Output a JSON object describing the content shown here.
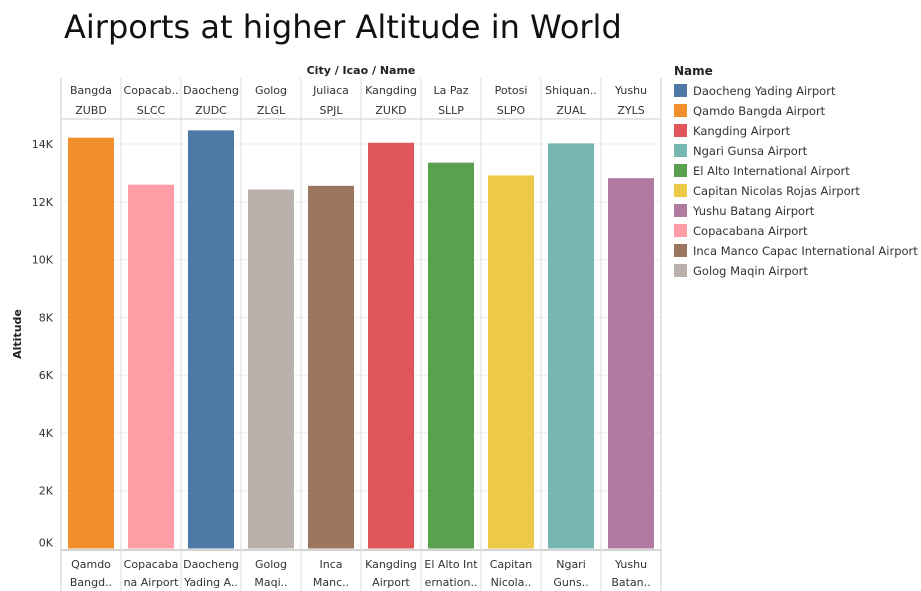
{
  "chart_data": {
    "type": "bar",
    "title": "Airports at higher Altitude in World",
    "header_label": "City / Icao / Name",
    "ylabel": "Altitude",
    "ylim": [
      0,
      15000
    ],
    "yticks": [
      0,
      2000,
      4000,
      6000,
      8000,
      10000,
      12000,
      14000
    ],
    "ytick_labels": [
      "0K",
      "2K",
      "4K",
      "6K",
      "8K",
      "10K",
      "12K",
      "14K"
    ],
    "grid": true,
    "legend_title": "Name",
    "legend_position": "right",
    "categories": [
      {
        "city": "Bangda",
        "icao": "ZUBD",
        "name": "Qamdo Bangda Airport",
        "name_lines": [
          "Qamdo",
          "Bangd.."
        ],
        "value": 14219
      },
      {
        "city": "Copacab..",
        "icao": "SLCC",
        "name": "Copacabana Airport",
        "name_lines": [
          "Copacaba",
          "na Airport"
        ],
        "value": 12591
      },
      {
        "city": "Daocheng",
        "icao": "ZUDC",
        "name": "Daocheng Yading Airport",
        "name_lines": [
          "Daocheng",
          "Yading A.."
        ],
        "value": 14472
      },
      {
        "city": "Golog",
        "icao": "ZLGL",
        "name": "Golog Maqin Airport",
        "name_lines": [
          "Golog",
          "Maqi.."
        ],
        "value": 12426
      },
      {
        "city": "Juliaca",
        "icao": "SPJL",
        "name": "Inca Manco Capac International Airport",
        "name_lines": [
          "Inca",
          "Manc.."
        ],
        "value": 12552
      },
      {
        "city": "Kangding",
        "icao": "ZUKD",
        "name": "Kangding Airport",
        "name_lines": [
          "Kangding",
          "Airport"
        ],
        "value": 14042
      },
      {
        "city": "La Paz",
        "icao": "SLLP",
        "name": "El Alto International Airport",
        "name_lines": [
          "El Alto Int",
          "ernation.."
        ],
        "value": 13355
      },
      {
        "city": "Potosi",
        "icao": "SLPO",
        "name": "Capitan Nicolas Rojas Airport",
        "name_lines": [
          "Capitan",
          "Nicola.."
        ],
        "value": 12913
      },
      {
        "city": "Shiquan..",
        "icao": "ZUAL",
        "name": "Ngari Gunsa Airport",
        "name_lines": [
          "Ngari",
          "Guns.."
        ],
        "value": 14022
      },
      {
        "city": "Yushu",
        "icao": "ZYLS",
        "name": "Yushu Batang Airport",
        "name_lines": [
          "Yushu",
          "Batan.."
        ],
        "value": 12816
      }
    ],
    "legend": [
      {
        "label": "Daocheng Yading Airport",
        "color": "#4e79a7"
      },
      {
        "label": "Qamdo Bangda Airport",
        "color": "#f28e2b"
      },
      {
        "label": "Kangding Airport",
        "color": "#e15759"
      },
      {
        "label": "Ngari Gunsa Airport",
        "color": "#76b7b2"
      },
      {
        "label": "El Alto International Airport",
        "color": "#59a14f"
      },
      {
        "label": "Capitan Nicolas Rojas Airport",
        "color": "#edc948"
      },
      {
        "label": "Yushu Batang Airport",
        "color": "#b07aa1"
      },
      {
        "label": "Copacabana Airport",
        "color": "#ff9da7"
      },
      {
        "label": "Inca Manco Capac International Airport",
        "color": "#9c755f"
      },
      {
        "label": "Golog Maqin Airport",
        "color": "#bab0ac"
      }
    ]
  }
}
